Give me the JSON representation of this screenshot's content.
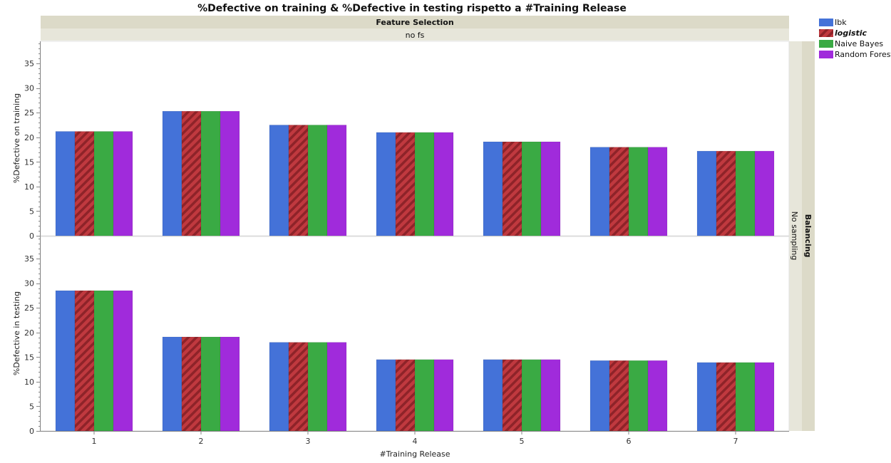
{
  "chart_data": {
    "type": "bar",
    "title": "%Defective on training & %Defective in testing rispetto a #Training Release",
    "column_group_header": "Feature Selection",
    "column_group_value": "no fs",
    "row_group_header": "Balancing",
    "row_group_value": "No sampling",
    "xlabel": "#Training Release",
    "categories": [
      "1",
      "2",
      "3",
      "4",
      "5",
      "6",
      "7"
    ],
    "yticks": [
      "0",
      "5",
      "10",
      "15",
      "20",
      "25",
      "30",
      "35"
    ],
    "ylim": [
      0,
      39.5
    ],
    "legend_position": "top-right",
    "legend": [
      {
        "name": "Ibk",
        "color": "#4472D8",
        "pattern": "solid",
        "style": "normal"
      },
      {
        "name": "logistic",
        "color": "#C0393F",
        "pattern": "hatched",
        "style": "bold-italic"
      },
      {
        "name": "Naive Bayes",
        "color": "#3AAA44",
        "pattern": "solid",
        "style": "normal"
      },
      {
        "name": "Random Forest",
        "color": "#A02BDB",
        "pattern": "solid",
        "style": "normal"
      }
    ],
    "panels": [
      {
        "ylabel": "%Defective on training",
        "series": [
          {
            "name": "Ibk",
            "values": [
              21.2,
              25.3,
              22.5,
              21.0,
              19.1,
              18.0,
              17.2
            ]
          },
          {
            "name": "logistic",
            "values": [
              21.2,
              25.3,
              22.5,
              21.0,
              19.1,
              18.0,
              17.2
            ]
          },
          {
            "name": "Naive Bayes",
            "values": [
              21.2,
              25.3,
              22.5,
              21.0,
              19.1,
              18.0,
              17.2
            ]
          },
          {
            "name": "Random Forest",
            "values": [
              21.2,
              25.3,
              22.5,
              21.0,
              19.1,
              18.0,
              17.2
            ]
          }
        ]
      },
      {
        "ylabel": "%Defective in testing",
        "series": [
          {
            "name": "Ibk",
            "values": [
              28.5,
              19.1,
              18.0,
              14.5,
              14.5,
              14.3,
              13.9
            ]
          },
          {
            "name": "logistic",
            "values": [
              28.5,
              19.1,
              18.0,
              14.5,
              14.5,
              14.3,
              13.9
            ]
          },
          {
            "name": "Naive Bayes",
            "values": [
              28.5,
              19.1,
              18.0,
              14.5,
              14.5,
              14.3,
              13.9
            ]
          },
          {
            "name": "Random Forest",
            "values": [
              28.5,
              19.1,
              18.0,
              14.5,
              14.5,
              14.3,
              13.9
            ]
          }
        ]
      }
    ]
  }
}
